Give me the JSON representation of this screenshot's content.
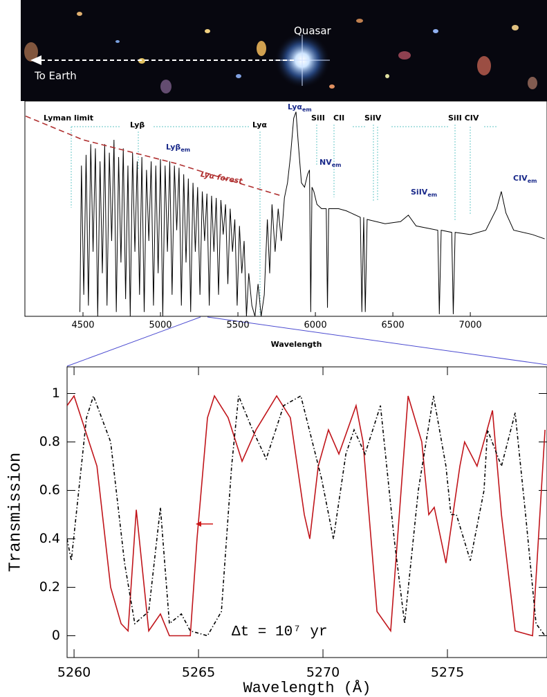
{
  "image": {
    "quasar_label": "Quasar",
    "earth_label": "To Earth"
  },
  "chart_data": [
    {
      "type": "line",
      "xlabel": "Wavelength",
      "xlim": [
        4125,
        7495
      ],
      "ylim": [
        0,
        1
      ],
      "xticks": [
        4500,
        5000,
        5500,
        6000,
        6500,
        7000
      ],
      "series": [
        {
          "color": "#000000",
          "style": "solid",
          "x": [
            4480,
            4490,
            4505,
            4520,
            4535,
            4550,
            4565,
            4580,
            4595,
            4610,
            4625,
            4640,
            4655,
            4670,
            4685,
            4700,
            4715,
            4730,
            4745,
            4760,
            4775,
            4790,
            4805,
            4820,
            4835,
            4850,
            4865,
            4880,
            4895,
            4910,
            4925,
            4940,
            4955,
            4970,
            4985,
            5000,
            5015,
            5030,
            5045,
            5060,
            5075,
            5090,
            5105,
            5120,
            5135,
            5150,
            5165,
            5180,
            5195,
            5210,
            5225,
            5240,
            5255,
            5270,
            5285,
            5300,
            5315,
            5330,
            5345,
            5360,
            5375,
            5390,
            5405,
            5420,
            5435,
            5450,
            5465,
            5480,
            5495,
            5510,
            5525,
            5540,
            5555,
            5570,
            5590,
            5610,
            5630,
            5650,
            5670,
            5690,
            5705,
            5720,
            5740,
            5760,
            5780,
            5800,
            5820,
            5840,
            5860,
            5875,
            5890,
            5910,
            5930,
            5950,
            5962,
            5970,
            5978,
            5990,
            6010,
            6040,
            6070,
            6078,
            6086,
            6150,
            6200,
            6290,
            6300,
            6312,
            6322,
            6334,
            6450,
            6550,
            6600,
            6650,
            6790,
            6800,
            6812,
            6880,
            6890,
            6902,
            7000,
            7100,
            7170,
            7200,
            7230,
            7280,
            7400,
            7480
          ],
          "values": [
            0.02,
            0.7,
            0.1,
            0.75,
            0.05,
            0.8,
            0.3,
            0.78,
            0.0,
            0.72,
            0.2,
            0.8,
            0.05,
            0.76,
            0.35,
            0.82,
            0.02,
            0.74,
            0.25,
            0.78,
            0.08,
            0.7,
            0.0,
            0.76,
            0.3,
            0.72,
            0.1,
            0.74,
            0.02,
            0.68,
            0.35,
            0.72,
            0.05,
            0.7,
            0.2,
            0.73,
            0.0,
            0.7,
            0.3,
            0.72,
            0.1,
            0.7,
            0.4,
            0.69,
            0.05,
            0.66,
            0.25,
            0.64,
            0.02,
            0.62,
            0.3,
            0.6,
            0.1,
            0.58,
            0.35,
            0.57,
            0.05,
            0.56,
            0.3,
            0.55,
            0.1,
            0.54,
            0.38,
            0.52,
            0.15,
            0.5,
            0.3,
            0.45,
            0.05,
            0.42,
            0.2,
            0.35,
            0.0,
            0.2,
            0.05,
            0.0,
            0.15,
            0.0,
            0.1,
            0.45,
            0.2,
            0.52,
            0.3,
            0.5,
            0.35,
            0.55,
            0.62,
            0.75,
            0.92,
            0.95,
            0.8,
            0.62,
            0.6,
            0.66,
            0.68,
            0.02,
            0.6,
            0.58,
            0.52,
            0.5,
            0.5,
            0.04,
            0.5,
            0.5,
            0.49,
            0.46,
            0.02,
            0.46,
            0.02,
            0.45,
            0.43,
            0.44,
            0.47,
            0.42,
            0.4,
            0.01,
            0.4,
            0.39,
            0.01,
            0.39,
            0.38,
            0.4,
            0.5,
            0.58,
            0.48,
            0.4,
            0.38,
            0.36
          ]
        },
        {
          "color": "#b03030",
          "style": "dashed",
          "x": [
            4130,
            4500,
            5100,
            5500,
            5780
          ],
          "values": [
            0.93,
            0.82,
            0.71,
            0.62,
            0.56
          ]
        }
      ],
      "annotations": [
        {
          "text": "Lyman limit"
        },
        {
          "text": "Lyβ"
        },
        {
          "text": "Lyα"
        },
        {
          "text": "Lyα",
          "sub": "em",
          "color": "#1a2a8a"
        },
        {
          "text": "SiII"
        },
        {
          "text": "CII"
        },
        {
          "text": "SiIV"
        },
        {
          "text": "SiII CIV"
        },
        {
          "text": "Lyβ",
          "sub": "em",
          "color": "#1a2a8a"
        },
        {
          "text": "Lyα forest",
          "color": "#b03030"
        },
        {
          "text": "NV",
          "sub": "em",
          "color": "#1a2a8a"
        },
        {
          "text": "SiIV",
          "sub": "em",
          "color": "#1a2a8a"
        },
        {
          "text": "CIV",
          "sub": "em",
          "color": "#1a2a8a"
        }
      ]
    },
    {
      "type": "line",
      "xlabel": "Wavelength (Å)",
      "ylabel": "Transmission",
      "xlim": [
        5259.72,
        5279.0
      ],
      "ylim": [
        -0.09,
        1.11
      ],
      "xticks": [
        5260,
        5265,
        5270,
        5275
      ],
      "yticks": [
        0,
        0.2,
        0.4,
        0.6,
        0.8,
        1
      ],
      "series": [
        {
          "color": "#c0141a",
          "style": "solid",
          "x": [
            5259.72,
            5260.0,
            5260.92,
            5261.47,
            5261.89,
            5262.17,
            5262.5,
            5263.0,
            5263.47,
            5263.83,
            5264.67,
            5264.94,
            5265.36,
            5265.64,
            5266.19,
            5266.75,
            5267.31,
            5268.14,
            5268.69,
            5269.25,
            5269.47,
            5269.81,
            5270.22,
            5270.64,
            5271.33,
            5271.61,
            5272.17,
            5272.72,
            5273.42,
            5273.97,
            5274.25,
            5274.47,
            5274.94,
            5275.5,
            5275.69,
            5276.19,
            5276.81,
            5277.17,
            5277.72,
            5278.42,
            5278.92
          ],
          "values": [
            0.95,
            0.99,
            0.7,
            0.2,
            0.05,
            0.02,
            0.52,
            0.02,
            0.09,
            0.0,
            0.0,
            0.4,
            0.9,
            0.99,
            0.9,
            0.72,
            0.85,
            0.99,
            0.9,
            0.5,
            0.4,
            0.7,
            0.85,
            0.75,
            0.95,
            0.8,
            0.1,
            0.02,
            0.99,
            0.8,
            0.5,
            0.53,
            0.3,
            0.7,
            0.8,
            0.7,
            0.93,
            0.5,
            0.02,
            0.0,
            0.85
          ]
        },
        {
          "color": "#000000",
          "style": "dashdot",
          "x": [
            5259.72,
            5259.89,
            5260.5,
            5260.78,
            5261.47,
            5262.03,
            5262.44,
            5263.0,
            5263.47,
            5263.83,
            5264.31,
            5264.67,
            5265.36,
            5265.92,
            5266.33,
            5266.61,
            5267.17,
            5267.72,
            5268.42,
            5269.11,
            5269.94,
            5270.42,
            5270.92,
            5271.25,
            5271.69,
            5272.31,
            5272.86,
            5273.28,
            5273.83,
            5274.44,
            5274.94,
            5275.14,
            5275.36,
            5275.92,
            5276.47,
            5276.61,
            5277.17,
            5277.72,
            5278.14,
            5278.56,
            5278.92
          ],
          "values": [
            0.4,
            0.31,
            0.9,
            0.99,
            0.8,
            0.3,
            0.05,
            0.1,
            0.53,
            0.05,
            0.09,
            0.02,
            0.0,
            0.1,
            0.7,
            0.99,
            0.85,
            0.73,
            0.95,
            0.99,
            0.65,
            0.4,
            0.75,
            0.85,
            0.75,
            0.95,
            0.4,
            0.05,
            0.6,
            0.99,
            0.7,
            0.5,
            0.5,
            0.31,
            0.6,
            0.85,
            0.7,
            0.92,
            0.5,
            0.05,
            0.0
          ]
        }
      ],
      "annotations": [
        {
          "text": "Δt = 10⁷ yr"
        }
      ]
    }
  ]
}
